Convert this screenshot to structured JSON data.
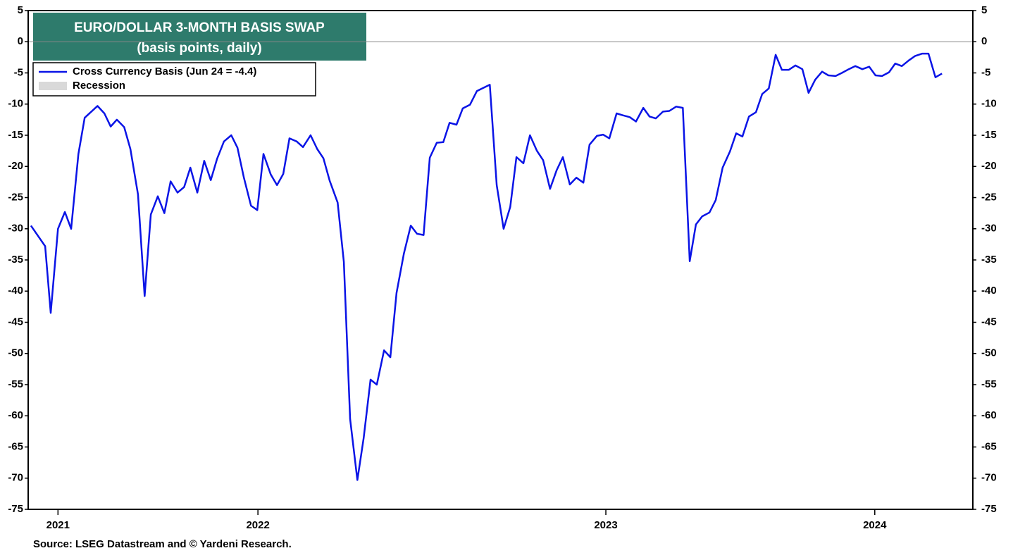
{
  "chart_data": {
    "type": "line",
    "title": "EURO/DOLLAR 3-MONTH BASIS SWAP",
    "subtitle": "(basis points, daily)",
    "source": "Source: LSEG Datastream and © Yardeni Research.",
    "title_color": "#2e7b6c",
    "ylim": [
      5,
      -75
    ],
    "yticks": [
      5,
      0,
      -5,
      -10,
      -15,
      -20,
      -25,
      -30,
      -35,
      -40,
      -45,
      -50,
      -55,
      -60,
      -65,
      -70,
      -75
    ],
    "xlim": [
      2021.835,
      2024.561
    ],
    "xticks": [
      {
        "value": 2021.921,
        "label": "2021"
      },
      {
        "value": 2022.498,
        "label": "2022"
      },
      {
        "value": 2023.502,
        "label": "2023"
      },
      {
        "value": 2024.278,
        "label": "2024"
      }
    ],
    "shaded_legend": {
      "name": "Recession",
      "color": "#d9d9d9"
    },
    "series": [
      {
        "name": "Cross Currency Basis (Jun 24 = -4.4)",
        "color": "#0a14e6",
        "x": [
          2021.843,
          2021.884,
          2021.9,
          2021.921,
          2021.941,
          2021.959,
          2021.98,
          2021.998,
          2022.035,
          2022.055,
          2022.073,
          2022.091,
          2022.112,
          2022.13,
          2022.152,
          2022.171,
          2022.189,
          2022.209,
          2022.228,
          2022.246,
          2022.266,
          2022.285,
          2022.303,
          2022.323,
          2022.343,
          2022.362,
          2022.38,
          2022.4,
          2022.421,
          2022.439,
          2022.457,
          2022.478,
          2022.496,
          2022.514,
          2022.535,
          2022.553,
          2022.571,
          2022.589,
          2022.61,
          2022.628,
          2022.65,
          2022.669,
          2022.687,
          2022.705,
          2022.728,
          2022.746,
          2022.764,
          2022.785,
          2022.803,
          2022.823,
          2022.841,
          2022.862,
          2022.88,
          2022.898,
          2022.919,
          2022.939,
          2022.957,
          2022.976,
          2022.994,
          2023.014,
          2023.033,
          2023.051,
          2023.071,
          2023.089,
          2023.11,
          2023.13,
          2023.167,
          2023.187,
          2023.207,
          2023.226,
          2023.244,
          2023.264,
          2023.283,
          2023.303,
          2023.321,
          2023.341,
          2023.36,
          2023.378,
          2023.398,
          2023.417,
          2023.437,
          2023.455,
          2023.476,
          2023.494,
          2023.512,
          2023.533,
          2023.551,
          2023.571,
          2023.589,
          2023.61,
          2023.628,
          2023.646,
          2023.667,
          2023.685,
          2023.705,
          2023.724,
          2023.744,
          2023.762,
          2023.78,
          2023.801,
          2023.819,
          2023.839,
          2023.86,
          2023.878,
          2023.896,
          2023.915,
          2023.935,
          2023.953,
          2023.972,
          2023.992,
          2024.01,
          2024.03,
          2024.049,
          2024.069,
          2024.087,
          2024.106,
          2024.126,
          2024.144,
          2024.165,
          2024.183,
          2024.203,
          2024.222,
          2024.242,
          2024.262,
          2024.28,
          2024.299,
          2024.319,
          2024.337,
          2024.356,
          2024.376,
          2024.394,
          2024.415,
          2024.433,
          2024.453,
          2024.472
        ],
        "values": [
          -29.5,
          -32.8,
          -43.5,
          -30,
          -27.3,
          -30,
          -18,
          -12.2,
          -10.3,
          -11.5,
          -13.6,
          -12.5,
          -13.7,
          -17.2,
          -24.5,
          -40.8,
          -27.7,
          -24.8,
          -27.5,
          -22.4,
          -24.2,
          -23.3,
          -20.2,
          -24.2,
          -19.1,
          -22.2,
          -18.8,
          -16,
          -15,
          -17,
          -21.7,
          -26.3,
          -27,
          -18,
          -21.3,
          -23,
          -21.2,
          -15.5,
          -16,
          -16.9,
          -15,
          -17.2,
          -18.7,
          -22.3,
          -25.8,
          -35.3,
          -60.5,
          -70.3,
          -63.6,
          -54.2,
          -55,
          -49.5,
          -50.6,
          -40.3,
          -34,
          -29.5,
          -30.8,
          -31,
          -18.6,
          -16.2,
          -16.1,
          -13,
          -13.3,
          -10.7,
          -10.1,
          -7.9,
          -6.9,
          -23,
          -30,
          -26.5,
          -18.5,
          -19.5,
          -15,
          -17.5,
          -19,
          -23.6,
          -20.6,
          -18.5,
          -22.9,
          -21.8,
          -22.6,
          -16.5,
          -15.1,
          -14.9,
          -15.5,
          -11.5,
          -11.8,
          -12.1,
          -12.8,
          -10.6,
          -12,
          -12.3,
          -11.2,
          -11.1,
          -10.4,
          -10.6,
          -35.2,
          -29.3,
          -28,
          -27.4,
          -25.4,
          -20.2,
          -17.6,
          -14.7,
          -15.2,
          -12,
          -11.3,
          -8.4,
          -7.5,
          -2.1,
          -4.5,
          -4.5,
          -3.8,
          -4.4,
          -8.2,
          -6.1,
          -4.8,
          -5.4,
          -5.5,
          -5,
          -4.4,
          -3.9,
          -4.4,
          -4,
          -5.4,
          -5.5,
          -4.9,
          -3.5,
          -3.9,
          -3,
          -2.3,
          -1.9,
          -1.9,
          -5.7,
          -5.1
        ]
      }
    ]
  }
}
